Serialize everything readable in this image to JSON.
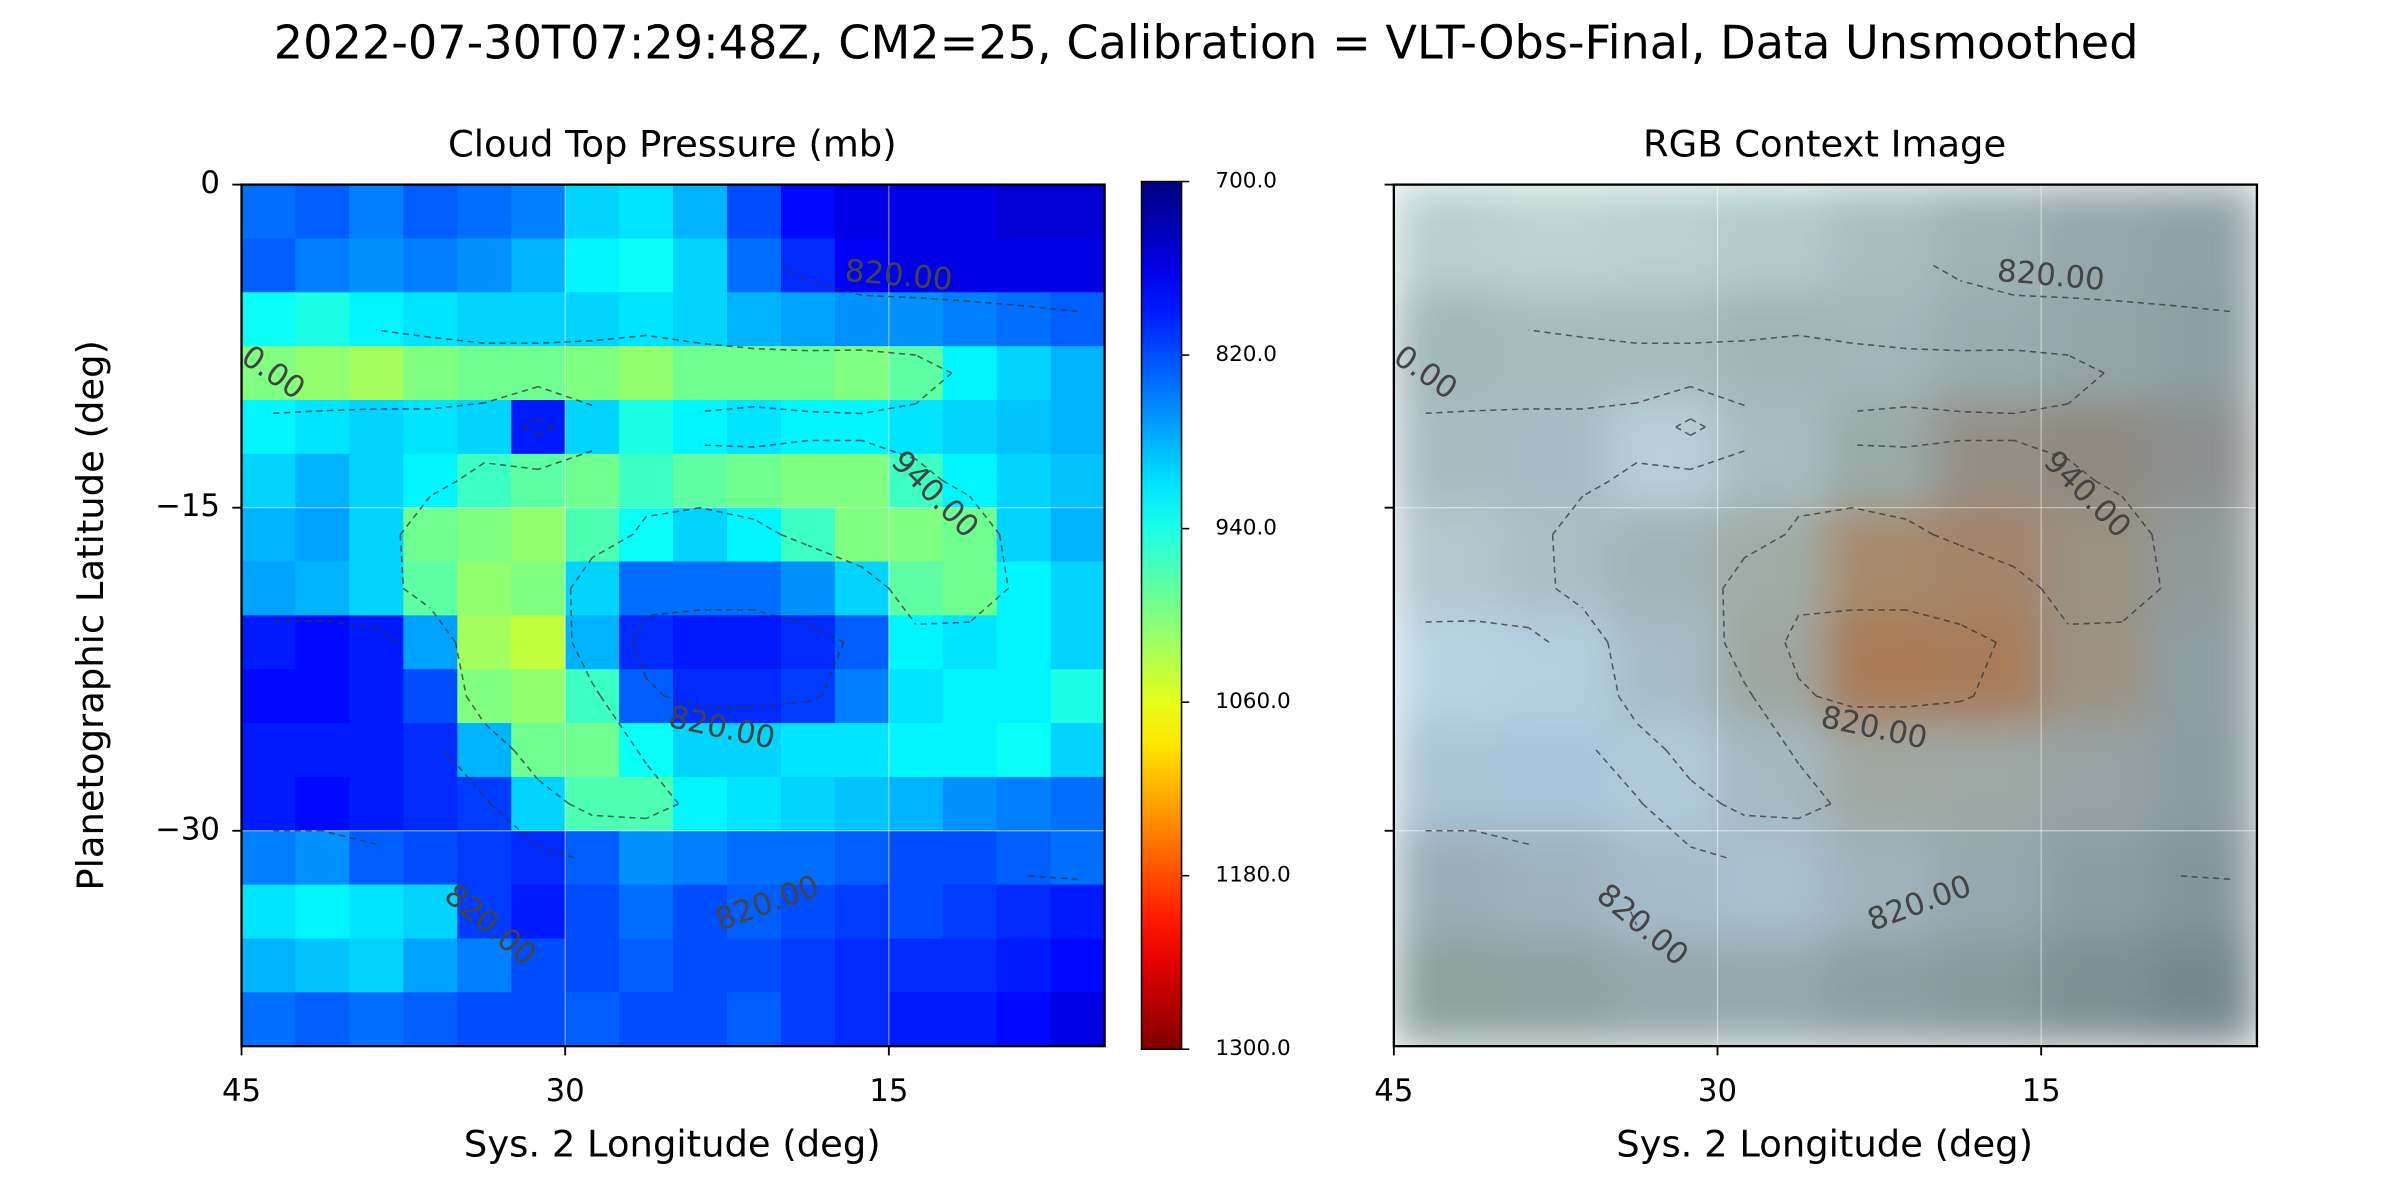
{
  "title": "2022-07-30T07:29:48Z, CM2=25, Calibration = VLT-Obs-Final, Data Unsmoothed",
  "chart_data": [
    {
      "type": "heatmap",
      "title": "Cloud Top Pressure (mb)",
      "xlabel": "Sys. 2 Longitude (deg)",
      "ylabel": "Planetographic Latitude (deg)",
      "xlim": [
        45,
        5
      ],
      "ylim": [
        -40,
        0
      ],
      "xticks": [
        45,
        30,
        15
      ],
      "yticks": [
        0,
        {
          "value": -15,
          "label": "−15"
        },
        {
          "value": -30,
          "label": "−30"
        }
      ],
      "grid": true,
      "colormap": "jet",
      "colorbar": {
        "lim": [
          700,
          1300
        ],
        "ticks": [
          {
            "value": 700,
            "label": "700.0"
          },
          {
            "value": 820,
            "label": "820.0"
          },
          {
            "value": 940,
            "label": "940.0"
          },
          {
            "value": 1060,
            "label": "1060.0"
          },
          {
            "value": 1180,
            "label": "1180.0"
          },
          {
            "value": 1300,
            "label": "1300.0"
          }
        ]
      },
      "contour_levels": [
        820,
        940
      ],
      "contour_labels": [
        "820.00",
        "0.00",
        "940.00",
        "820.00",
        "820.00",
        "820.00"
      ],
      "values": [
        [
          840,
          830,
          850,
          830,
          840,
          850,
          900,
          910,
          880,
          820,
          780,
          760,
          760,
          760,
          750,
          750
        ],
        [
          830,
          850,
          860,
          850,
          860,
          880,
          920,
          930,
          900,
          840,
          800,
          770,
          760,
          760,
          760,
          760
        ],
        [
          930,
          940,
          920,
          910,
          900,
          900,
          900,
          910,
          900,
          880,
          870,
          860,
          860,
          850,
          840,
          830
        ],
        [
          1000,
          1010,
          1020,
          1000,
          990,
          990,
          1000,
          1010,
          990,
          990,
          990,
          1000,
          980,
          920,
          900,
          880
        ],
        [
          920,
          910,
          900,
          910,
          900,
          790,
          900,
          940,
          920,
          910,
          920,
          920,
          910,
          900,
          890,
          880
        ],
        [
          900,
          880,
          900,
          920,
          960,
          980,
          990,
          960,
          980,
          990,
          1000,
          1000,
          960,
          920,
          900,
          890
        ],
        [
          880,
          870,
          900,
          990,
          1000,
          1010,
          970,
          930,
          900,
          920,
          960,
          1000,
          1000,
          990,
          900,
          880
        ],
        [
          870,
          880,
          900,
          980,
          1010,
          1000,
          900,
          840,
          840,
          840,
          860,
          900,
          980,
          990,
          920,
          900
        ],
        [
          790,
          780,
          790,
          870,
          1020,
          1040,
          880,
          800,
          790,
          790,
          800,
          830,
          920,
          910,
          920,
          900
        ],
        [
          780,
          780,
          790,
          820,
          1000,
          1010,
          960,
          830,
          800,
          800,
          810,
          850,
          910,
          920,
          920,
          940
        ],
        [
          790,
          790,
          790,
          800,
          880,
          990,
          990,
          930,
          900,
          900,
          910,
          910,
          920,
          920,
          930,
          900
        ],
        [
          790,
          780,
          790,
          800,
          810,
          900,
          970,
          970,
          920,
          910,
          900,
          890,
          880,
          860,
          850,
          840
        ],
        [
          850,
          860,
          830,
          820,
          810,
          800,
          830,
          860,
          850,
          840,
          840,
          830,
          820,
          820,
          830,
          840
        ],
        [
          910,
          920,
          910,
          900,
          810,
          790,
          820,
          840,
          820,
          830,
          820,
          810,
          820,
          810,
          800,
          790
        ],
        [
          880,
          890,
          900,
          870,
          850,
          820,
          820,
          830,
          820,
          820,
          810,
          800,
          800,
          800,
          790,
          780
        ],
        [
          840,
          830,
          840,
          830,
          820,
          820,
          830,
          820,
          820,
          830,
          810,
          800,
          790,
          790,
          780,
          760
        ]
      ]
    },
    {
      "type": "image",
      "title": "RGB Context Image",
      "xlabel": "Sys. 2 Longitude (deg)",
      "xlim": [
        45,
        5
      ],
      "ylim": [
        -40,
        0
      ],
      "xticks": [
        45,
        30,
        15
      ],
      "yticks": [
        0,
        -15,
        -30
      ],
      "grid": true,
      "contour_labels": [
        "820.00",
        "0.00",
        "940.00",
        "820.00",
        "820.00",
        "820.00"
      ],
      "colors": [
        [
          "#b7cfcf",
          "#bdd4d2",
          "#b9d0d0",
          "#b3cbcb",
          "#aabebf",
          "#9fb2b4",
          "#95a7aa",
          "#8fa2a5"
        ],
        [
          "#a3b8b8",
          "#a8bbbb",
          "#a8bbbc",
          "#a2b4b5",
          "#a3b5b7",
          "#9aacae",
          "#94a6a8",
          "#8e9fa2"
        ],
        [
          "#a8bcc0",
          "#a6bcc4",
          "#b8cfd8",
          "#a9bcc0",
          "#9aaaa8",
          "#948f86",
          "#8f8a80",
          "#8c9090"
        ],
        [
          "#b3c7cc",
          "#aabec4",
          "#a1b3b6",
          "#a0aca6",
          "#a88a6c",
          "#a58468",
          "#9a9284",
          "#909a9a"
        ],
        [
          "#b8d4e4",
          "#b3cfe0",
          "#a6bdc6",
          "#9ea7a0",
          "#a97a55",
          "#a87b58",
          "#9c9384",
          "#8e9ea2"
        ],
        [
          "#aac4d6",
          "#a9c4d8",
          "#b0cadb",
          "#a6b8c0",
          "#a0a8a2",
          "#9ea8a4",
          "#97a3a4",
          "#8c9ca0"
        ],
        [
          "#98aeb6",
          "#9cb3bc",
          "#a4bccb",
          "#a8c0d0",
          "#9fb2ba",
          "#96a8ae",
          "#8c9da2",
          "#85969b"
        ],
        [
          "#8ea29f",
          "#8fa2a1",
          "#95a8aa",
          "#95a9ac",
          "#8e9fa2",
          "#899a9c",
          "#7f9093",
          "#76878c"
        ]
      ]
    }
  ]
}
